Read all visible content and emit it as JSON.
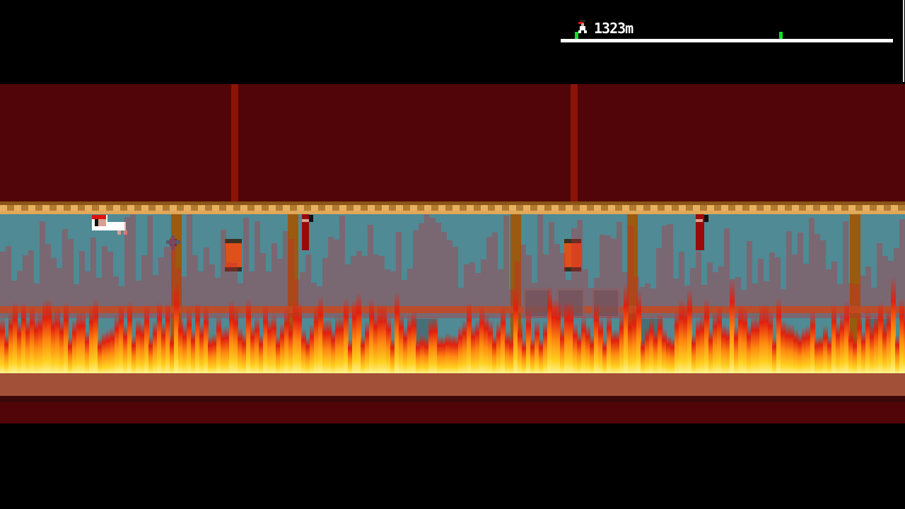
{
  "hud": {
    "distance": "1323m",
    "runner_icon": "ninja-runner-icon",
    "progress_markers": [
      0.04,
      0.66
    ],
    "colors": {
      "track": "#ffffff",
      "marker": "#10e020"
    }
  },
  "scene": {
    "colors": {
      "sky": "#520508",
      "wall": "#4f8a95",
      "fire": "#ff8a10",
      "floor": "#a25038"
    },
    "entities": [
      "player-ninja",
      "shuriken",
      "lantern",
      "enemy-ninja",
      "crate"
    ]
  }
}
